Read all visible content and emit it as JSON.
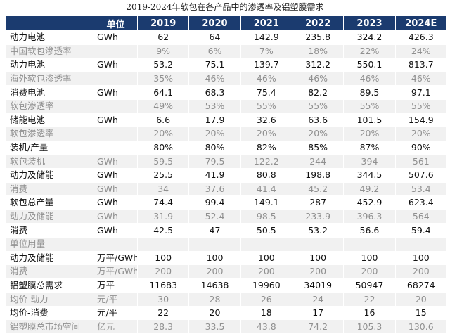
{
  "title": "2019-2024年软包在各产品中的渗透率及铝塑膜需求",
  "headers": [
    "",
    "单位",
    "2019",
    "2020",
    "2021",
    "2022",
    "2023",
    "2024E"
  ],
  "rows": [
    {
      "style": "p",
      "label": "动力电池",
      "unit": "GWh",
      "values": [
        "62",
        "64",
        "142.9",
        "235.8",
        "324.2",
        "426.3"
      ]
    },
    {
      "style": "s",
      "label": "中国软包渗透率",
      "unit": "",
      "values": [
        "9%",
        "6%",
        "7%",
        "18%",
        "22%",
        "24%"
      ]
    },
    {
      "style": "p",
      "label": "动力电池",
      "unit": "GWh",
      "values": [
        "53.2",
        "75.1",
        "139.7",
        "312.2",
        "550.1",
        "813.7"
      ]
    },
    {
      "style": "s",
      "label": "海外软包渗透率",
      "unit": "",
      "values": [
        "35%",
        "46%",
        "46%",
        "46%",
        "46%",
        "46%"
      ]
    },
    {
      "style": "p",
      "label": "消费电池",
      "unit": "GWh",
      "values": [
        "64.1",
        "68.3",
        "75.4",
        "82.2",
        "89.5",
        "97.1"
      ]
    },
    {
      "style": "s",
      "label": "软包渗透率",
      "unit": "",
      "values": [
        "49%",
        "53%",
        "55%",
        "55%",
        "55%",
        "55%"
      ]
    },
    {
      "style": "p",
      "label": "储能电池",
      "unit": "GWh",
      "values": [
        "6.6",
        "17.9",
        "32.6",
        "63.6",
        "101.5",
        "154.9"
      ]
    },
    {
      "style": "s",
      "label": "软包渗透率",
      "unit": "",
      "values": [
        "20%",
        "20%",
        "20%",
        "20%",
        "20%",
        "20%"
      ]
    },
    {
      "style": "p",
      "label": "装机/产量",
      "unit": "",
      "values": [
        "80%",
        "80%",
        "82%",
        "85%",
        "87%",
        "90%"
      ]
    },
    {
      "style": "s",
      "label": "软包装机",
      "unit": "GWh",
      "values": [
        "59.5",
        "79.5",
        "122.2",
        "244",
        "394",
        "561"
      ]
    },
    {
      "style": "p",
      "label": "动力及储能",
      "unit": "GWh",
      "values": [
        "25.5",
        "41.9",
        "80.8",
        "198.8",
        "344.5",
        "507.6"
      ]
    },
    {
      "style": "s",
      "label": "消费",
      "unit": "GWh",
      "values": [
        "34",
        "37.6",
        "41.4",
        "45.2",
        "49.2",
        "53.4"
      ]
    },
    {
      "style": "p",
      "label": "软包总产量",
      "unit": "GWh",
      "values": [
        "74.4",
        "99.4",
        "149.1",
        "287",
        "452.9",
        "623.4"
      ]
    },
    {
      "style": "s",
      "label": "动力及储能",
      "unit": "GWh",
      "values": [
        "31.9",
        "52.4",
        "98.5",
        "233.9",
        "396.3",
        "564"
      ]
    },
    {
      "style": "p",
      "label": "消费",
      "unit": "GWh",
      "values": [
        "42.5",
        "47",
        "50.5",
        "53.2",
        "56.6",
        "59.4"
      ]
    },
    {
      "style": "s",
      "label": "单位用量",
      "unit": "",
      "values": [
        "",
        "",
        "",
        "",
        "",
        ""
      ]
    },
    {
      "style": "p",
      "label": "动力及储能",
      "unit": "万平/GWh",
      "values": [
        "100",
        "100",
        "100",
        "100",
        "100",
        "100"
      ]
    },
    {
      "style": "s",
      "label": "消费",
      "unit": "万平/GWh",
      "values": [
        "200",
        "200",
        "200",
        "200",
        "200",
        "200"
      ]
    },
    {
      "style": "p",
      "label": "铝塑膜总需求",
      "unit": "万平",
      "values": [
        "11683",
        "14638",
        "19960",
        "34019",
        "50947",
        "68274"
      ]
    },
    {
      "style": "s",
      "label": "均价-动力",
      "unit": "元/平",
      "values": [
        "30",
        "28",
        "26",
        "24",
        "22",
        "20"
      ]
    },
    {
      "style": "p",
      "label": "均价-消费",
      "unit": "元/平",
      "values": [
        "22",
        "20",
        "18",
        "17",
        "16",
        "15"
      ]
    },
    {
      "style": "s",
      "label": "铝塑膜总市场空间",
      "unit": "亿元",
      "values": [
        "28.3",
        "33.5",
        "43.8",
        "74.2",
        "105.3",
        "130.6"
      ]
    }
  ]
}
